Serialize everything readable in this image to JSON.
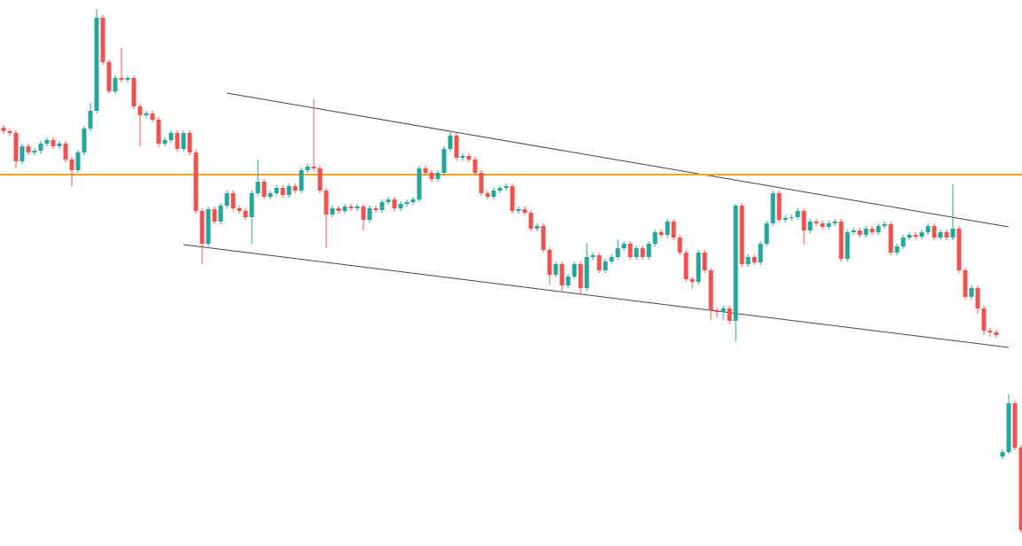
{
  "chart_data": {
    "type": "candlestick",
    "up_color": "#26a69a",
    "down_color": "#ef5350",
    "ylim": [
      0,
      616
    ],
    "open": [
      472,
      468,
      466,
      434,
      451,
      444,
      446,
      454,
      458,
      451,
      454,
      436,
      424,
      444,
      471,
      491,
      596,
      546,
      513,
      528,
      526,
      528,
      496,
      486,
      488,
      481,
      454,
      458,
      466,
      448,
      466,
      444,
      378,
      341,
      380,
      366,
      384,
      398,
      381,
      378,
      371,
      398,
      411,
      394,
      398,
      404,
      396,
      406,
      401,
      424,
      428,
      426,
      401,
      374,
      381,
      378,
      383,
      381,
      383,
      368,
      381,
      379,
      388,
      391,
      381,
      386,
      388,
      391,
      426,
      421,
      414,
      421,
      448,
      463,
      438,
      440,
      436,
      421,
      398,
      394,
      401,
      404,
      406,
      378,
      380,
      376,
      358,
      361,
      334,
      306,
      318,
      294,
      304,
      318,
      291,
      326,
      328,
      311,
      321,
      326,
      336,
      341,
      326,
      336,
      326,
      341,
      354,
      351,
      366,
      348,
      331,
      301,
      298,
      331,
      311,
      266,
      264,
      268,
      254,
      384,
      318,
      326,
      320,
      341,
      364,
      398,
      368,
      370,
      371,
      378,
      356,
      366,
      364,
      360,
      364,
      366,
      324,
      354,
      356,
      351,
      358,
      354,
      361,
      363,
      331,
      338,
      348,
      351,
      349,
      354,
      361,
      348,
      354,
      348,
      358,
      311,
      281,
      291,
      268,
      243,
      241,
      101,
      106,
      161,
      111
    ],
    "high": [
      475,
      471,
      469,
      454,
      454,
      449,
      457,
      461,
      461,
      457,
      457,
      439,
      447,
      474,
      500,
      606,
      599,
      549,
      531,
      562,
      531,
      531,
      499,
      491,
      491,
      484,
      461,
      469,
      469,
      469,
      469,
      447,
      381,
      383,
      383,
      387,
      401,
      401,
      384,
      381,
      401,
      436,
      414,
      401,
      407,
      407,
      409,
      409,
      427,
      431,
      504,
      429,
      404,
      384,
      384,
      386,
      386,
      386,
      386,
      384,
      384,
      391,
      394,
      394,
      389,
      391,
      394,
      429,
      429,
      424,
      424,
      451,
      468,
      466,
      443,
      443,
      439,
      424,
      401,
      404,
      407,
      409,
      409,
      383,
      383,
      379,
      364,
      364,
      337,
      321,
      321,
      307,
      321,
      321,
      342,
      331,
      331,
      324,
      329,
      346,
      344,
      344,
      339,
      339,
      344,
      357,
      357,
      369,
      369,
      351,
      334,
      304,
      334,
      334,
      314,
      269,
      271,
      271,
      386,
      387,
      329,
      329,
      344,
      367,
      401,
      401,
      373,
      374,
      381,
      381,
      369,
      369,
      367,
      367,
      369,
      369,
      357,
      359,
      359,
      361,
      361,
      364,
      366,
      366,
      341,
      351,
      354,
      354,
      357,
      364,
      364,
      357,
      357,
      408,
      361,
      314,
      294,
      294,
      271,
      246,
      244,
      109,
      171,
      164,
      114
    ],
    "low": [
      465,
      463,
      426,
      431,
      441,
      441,
      443,
      451,
      448,
      448,
      433,
      406,
      421,
      441,
      468,
      488,
      543,
      510,
      510,
      523,
      523,
      493,
      451,
      483,
      478,
      450,
      451,
      455,
      445,
      445,
      441,
      375,
      318,
      338,
      363,
      363,
      381,
      378,
      375,
      368,
      341,
      395,
      391,
      391,
      395,
      393,
      393,
      398,
      398,
      421,
      423,
      398,
      336,
      371,
      375,
      375,
      378,
      378,
      356,
      365,
      376,
      376,
      385,
      378,
      378,
      383,
      385,
      388,
      418,
      411,
      411,
      418,
      445,
      435,
      435,
      433,
      418,
      395,
      391,
      391,
      398,
      401,
      375,
      375,
      373,
      355,
      355,
      331,
      295,
      303,
      288,
      291,
      301,
      284,
      288,
      323,
      308,
      308,
      318,
      323,
      333,
      323,
      323,
      323,
      323,
      338,
      348,
      348,
      345,
      328,
      298,
      290,
      295,
      308,
      255,
      258,
      255,
      250,
      231,
      315,
      315,
      317,
      317,
      338,
      361,
      365,
      365,
      367,
      368,
      340,
      353,
      361,
      357,
      357,
      361,
      321,
      321,
      351,
      348,
      348,
      351,
      351,
      358,
      328,
      328,
      335,
      345,
      346,
      346,
      351,
      345,
      345,
      345,
      345,
      308,
      278,
      278,
      262,
      238,
      236,
      235,
      98,
      104,
      108,
      15
    ],
    "close": [
      468,
      466,
      434,
      451,
      444,
      446,
      454,
      458,
      451,
      454,
      436,
      424,
      444,
      471,
      491,
      596,
      546,
      513,
      528,
      526,
      528,
      496,
      486,
      488,
      481,
      454,
      458,
      466,
      448,
      466,
      444,
      378,
      341,
      380,
      366,
      384,
      398,
      381,
      378,
      371,
      398,
      411,
      394,
      398,
      404,
      396,
      406,
      401,
      424,
      428,
      426,
      401,
      374,
      381,
      378,
      383,
      381,
      383,
      368,
      381,
      379,
      388,
      391,
      381,
      386,
      388,
      391,
      426,
      421,
      414,
      421,
      448,
      463,
      438,
      440,
      436,
      421,
      398,
      394,
      401,
      404,
      406,
      378,
      380,
      376,
      358,
      361,
      334,
      306,
      318,
      294,
      304,
      318,
      291,
      326,
      328,
      311,
      321,
      326,
      336,
      341,
      326,
      336,
      326,
      341,
      354,
      351,
      366,
      348,
      331,
      301,
      298,
      331,
      311,
      266,
      264,
      268,
      254,
      384,
      318,
      326,
      320,
      341,
      364,
      398,
      368,
      370,
      371,
      378,
      356,
      366,
      364,
      360,
      364,
      366,
      324,
      354,
      356,
      351,
      358,
      354,
      361,
      363,
      331,
      338,
      348,
      351,
      349,
      354,
      361,
      348,
      354,
      348,
      358,
      311,
      281,
      291,
      268,
      243,
      241,
      238,
      106,
      161,
      111,
      18
    ],
    "hlines": [
      {
        "value": 419,
        "color": "#f7a21b"
      }
    ],
    "trendlines": [
      {
        "from": [
          36,
          511
        ],
        "to": [
          162,
          360
        ],
        "color": "#444444"
      },
      {
        "from": [
          29,
          340
        ],
        "to": [
          162,
          224
        ],
        "color": "#444444"
      }
    ]
  }
}
